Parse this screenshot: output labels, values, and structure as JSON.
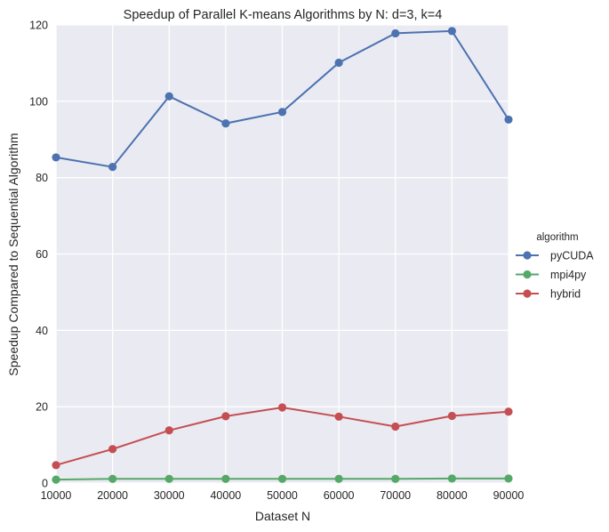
{
  "chart_data": {
    "type": "line",
    "title": "Speedup of Parallel K-means Algorithms by N: d=3, k=4",
    "xlabel": "Dataset N",
    "ylabel": "Speedup Compared to Sequential Algorithm",
    "x": [
      10000,
      20000,
      30000,
      40000,
      50000,
      60000,
      70000,
      80000,
      90000
    ],
    "xlim": [
      10000,
      90000
    ],
    "ylim": [
      0,
      120
    ],
    "xticks": [
      10000,
      20000,
      30000,
      40000,
      50000,
      60000,
      70000,
      80000,
      90000
    ],
    "yticks": [
      0,
      20,
      40,
      60,
      80,
      100,
      120
    ],
    "grid": true,
    "legend_title": "algorithm",
    "legend_position": "right",
    "series": [
      {
        "name": "pyCUDA",
        "color": "#4c72b0",
        "values": [
          85.3,
          82.8,
          101.3,
          94.2,
          97.2,
          110.1,
          117.8,
          118.4,
          95.2
        ]
      },
      {
        "name": "mpi4py",
        "color": "#55a868",
        "values": [
          0.9,
          1.1,
          1.1,
          1.1,
          1.1,
          1.1,
          1.1,
          1.2,
          1.2
        ]
      },
      {
        "name": "hybrid",
        "color": "#c44e52",
        "values": [
          4.7,
          8.9,
          13.8,
          17.5,
          19.8,
          17.4,
          14.8,
          17.6,
          18.7
        ]
      }
    ]
  }
}
